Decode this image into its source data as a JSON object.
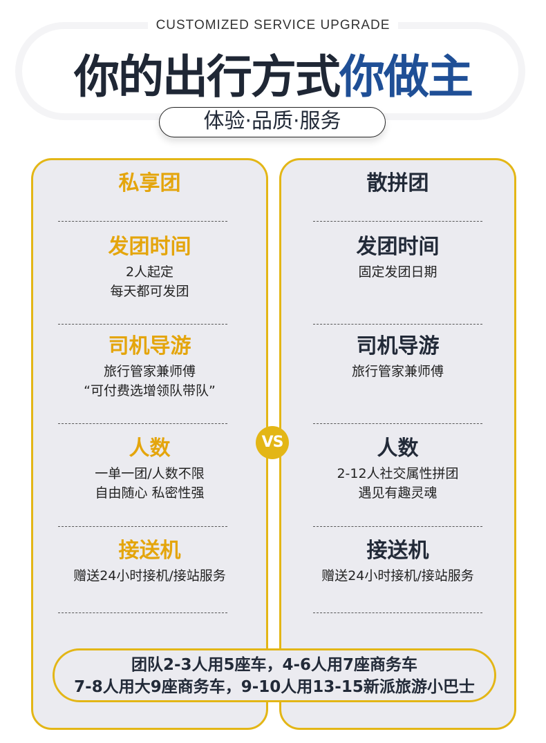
{
  "header": {
    "subtitle_en": "CUSTOMIZED SERVICE UPGRADE",
    "title_dark": "你的出行方式",
    "title_blue": "你做主",
    "tagline": "体验·品质·服务"
  },
  "colors": {
    "accent_yellow": "#e3b616",
    "title_blue": "#1f4f96",
    "left_heading": "#e4a50c"
  },
  "left": {
    "title": "私享团",
    "sections": [
      {
        "heading": "发团时间",
        "lines": [
          "2人起定",
          "每天都可发团"
        ]
      },
      {
        "heading": "司机导游",
        "lines": [
          "旅行管家兼师傅",
          "“可付费选增领队带队”"
        ]
      },
      {
        "heading": "人数",
        "lines": [
          "一单一团/人数不限",
          "自由随心 私密性强"
        ]
      },
      {
        "heading": "接送机",
        "lines": [
          "赠送24小时接机/接站服务"
        ]
      }
    ]
  },
  "right": {
    "title": "散拼团",
    "sections": [
      {
        "heading": "发团时间",
        "lines": [
          "固定发团日期"
        ]
      },
      {
        "heading": "司机导游",
        "lines": [
          "旅行管家兼师傅"
        ]
      },
      {
        "heading": "人数",
        "lines": [
          "2-12人社交属性拼团",
          "遇见有趣灵魂"
        ]
      },
      {
        "heading": "接送机",
        "lines": [
          "赠送24小时接机/接站服务"
        ]
      }
    ]
  },
  "vs": "VS",
  "note": [
    "团队2-3人用5座车，4-6人用7座商务车",
    "7-8人用大9座商务车，9-10人用13-15新派旅游小巴士"
  ]
}
